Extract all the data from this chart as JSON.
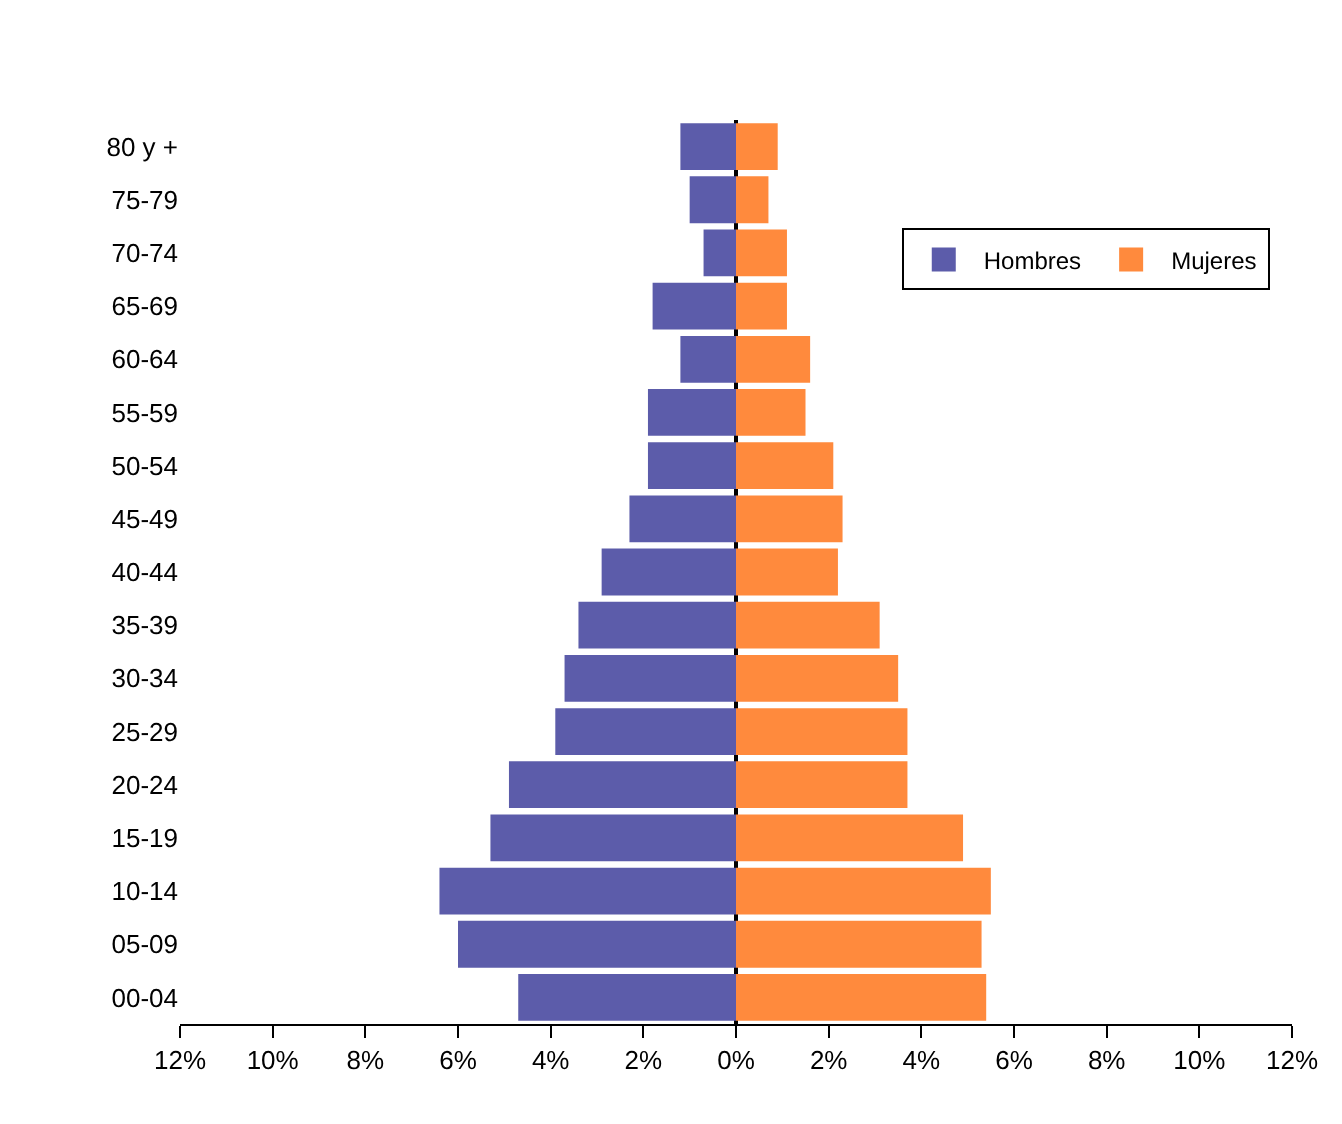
{
  "chart_data": {
    "type": "bar",
    "orientation": "horizontal",
    "stacked": true,
    "categories": [
      "80 y +",
      "75-79",
      "70-74",
      "65-69",
      "60-64",
      "55-59",
      "50-54",
      "45-49",
      "40-44",
      "35-39",
      "30-34",
      "25-29",
      "20-24",
      "15-19",
      "10-14",
      "05-09",
      "00-04"
    ],
    "series": [
      {
        "name": "Hombres",
        "color": "#5c5caa",
        "values": [
          -1.2,
          -1.0,
          -0.7,
          -1.8,
          -1.2,
          -1.9,
          -1.9,
          -2.3,
          -2.9,
          -3.4,
          -3.7,
          -3.9,
          -4.9,
          -5.3,
          -6.4,
          -6.0,
          -4.7
        ]
      },
      {
        "name": "Mujeres",
        "color": "#ff8a3d",
        "values": [
          0.9,
          0.7,
          1.1,
          1.1,
          1.6,
          1.5,
          2.1,
          2.3,
          2.2,
          3.1,
          3.5,
          3.7,
          3.7,
          4.9,
          5.5,
          5.3,
          5.4
        ]
      }
    ],
    "xlim": [
      -12,
      12
    ],
    "xticks": [
      {
        "value": -12,
        "label": "12%"
      },
      {
        "value": -10,
        "label": "10%"
      },
      {
        "value": -8,
        "label": "8%"
      },
      {
        "value": -6,
        "label": "6%"
      },
      {
        "value": -4,
        "label": "4%"
      },
      {
        "value": -2,
        "label": "2%"
      },
      {
        "value": 0,
        "label": "0%"
      },
      {
        "value": 2,
        "label": "2%"
      },
      {
        "value": 4,
        "label": "4%"
      },
      {
        "value": 6,
        "label": "6%"
      },
      {
        "value": 8,
        "label": "8%"
      },
      {
        "value": 10,
        "label": "10%"
      },
      {
        "value": 12,
        "label": "12%"
      }
    ],
    "legend": "top right"
  }
}
